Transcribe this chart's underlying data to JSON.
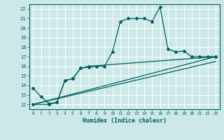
{
  "xlabel": "Humidex (Indice chaleur)",
  "bg_color": "#cce8e8",
  "grid_color": "#ffffff",
  "line_color": "#005f5f",
  "xlim": [
    -0.5,
    23.5
  ],
  "ylim": [
    11.5,
    22.5
  ],
  "xticks": [
    0,
    1,
    2,
    3,
    4,
    5,
    6,
    7,
    8,
    9,
    10,
    11,
    12,
    13,
    14,
    15,
    16,
    17,
    18,
    19,
    20,
    21,
    22,
    23
  ],
  "yticks": [
    12,
    13,
    14,
    15,
    16,
    17,
    18,
    19,
    20,
    21,
    22
  ],
  "line1_x": [
    0,
    1,
    2,
    3,
    4,
    5,
    6,
    7,
    8,
    9,
    10,
    11,
    12,
    13,
    14,
    15,
    16,
    17,
    18,
    19,
    20,
    21,
    22,
    23
  ],
  "line1_y": [
    13.7,
    12.8,
    12.1,
    12.2,
    14.5,
    14.7,
    15.8,
    15.9,
    16.0,
    16.0,
    17.5,
    20.7,
    21.0,
    21.0,
    21.0,
    20.7,
    22.2,
    17.8,
    17.5,
    17.6,
    17.0,
    17.0,
    17.0,
    17.0
  ],
  "line2_x": [
    0,
    2,
    3,
    4,
    5,
    6,
    7,
    23
  ],
  "line2_y": [
    12.0,
    12.0,
    12.2,
    14.5,
    14.7,
    15.8,
    16.0,
    17.0
  ],
  "line3_x": [
    0,
    23
  ],
  "line3_y": [
    12.0,
    17.0
  ],
  "line4_x": [
    0,
    23
  ],
  "line4_y": [
    12.0,
    16.5
  ]
}
